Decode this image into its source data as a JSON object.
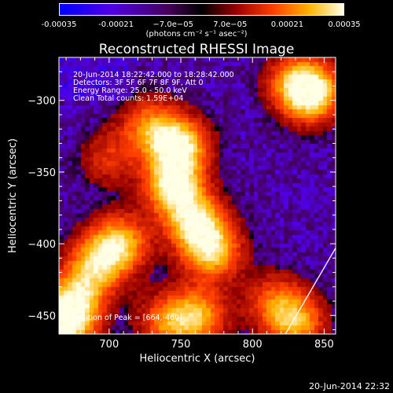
{
  "colorbar": {
    "tick_labels": [
      "-0.00035",
      "-0.00021",
      "−7.0e−05",
      "7.0e−05",
      "0.00021",
      "0.00035"
    ],
    "unit_label": "(photons cm⁻² s⁻¹ asec⁻²)",
    "range": [
      -0.00035,
      0.00035
    ]
  },
  "chart_data": {
    "type": "heatmap",
    "title": "Reconstructed RHESSI Image",
    "xlabel": "Heliocentric X (arcsec)",
    "ylabel": "Heliocentric Y (arcsec)",
    "xlim": [
      665,
      858
    ],
    "ylim": [
      -463,
      -270
    ],
    "x_ticks": [
      700,
      750,
      800,
      850
    ],
    "y_ticks": [
      -300,
      -350,
      -400,
      -450
    ],
    "annotations": [
      "20-Jun-2014 18:22:42.000 to 18:28:42.000",
      "Detectors: 3F 5F 6F 7F 8F 9F, Att 0",
      "Energy Range: 25.0 - 50.0 keV",
      "Clean     Total counts: 1.59E+04",
      "Position of Peak = [664,-460]"
    ],
    "limb_line": [
      [
        823,
        -463
      ],
      [
        858,
        -403
      ]
    ],
    "bright_regions": [
      {
        "x": 748,
        "y": -332,
        "intensity": 1.0
      },
      {
        "x": 745,
        "y": -360,
        "intensity": 0.95
      },
      {
        "x": 760,
        "y": -385,
        "intensity": 0.85
      },
      {
        "x": 772,
        "y": -405,
        "intensity": 0.8
      },
      {
        "x": 728,
        "y": -318,
        "intensity": 0.55
      },
      {
        "x": 842,
        "y": -295,
        "intensity": 0.9
      },
      {
        "x": 830,
        "y": -288,
        "intensity": 0.6
      },
      {
        "x": 707,
        "y": -400,
        "intensity": 0.8
      },
      {
        "x": 690,
        "y": -415,
        "intensity": 0.7
      },
      {
        "x": 676,
        "y": -440,
        "intensity": 0.75
      },
      {
        "x": 668,
        "y": -458,
        "intensity": 0.9
      },
      {
        "x": 762,
        "y": -450,
        "intensity": 0.7
      },
      {
        "x": 740,
        "y": -455,
        "intensity": 0.55
      },
      {
        "x": 830,
        "y": -455,
        "intensity": 0.7
      },
      {
        "x": 815,
        "y": -440,
        "intensity": 0.45
      },
      {
        "x": 700,
        "y": -340,
        "intensity": 0.35
      }
    ]
  },
  "footer": {
    "timestamp": "20-Jun-2014 22:32"
  }
}
